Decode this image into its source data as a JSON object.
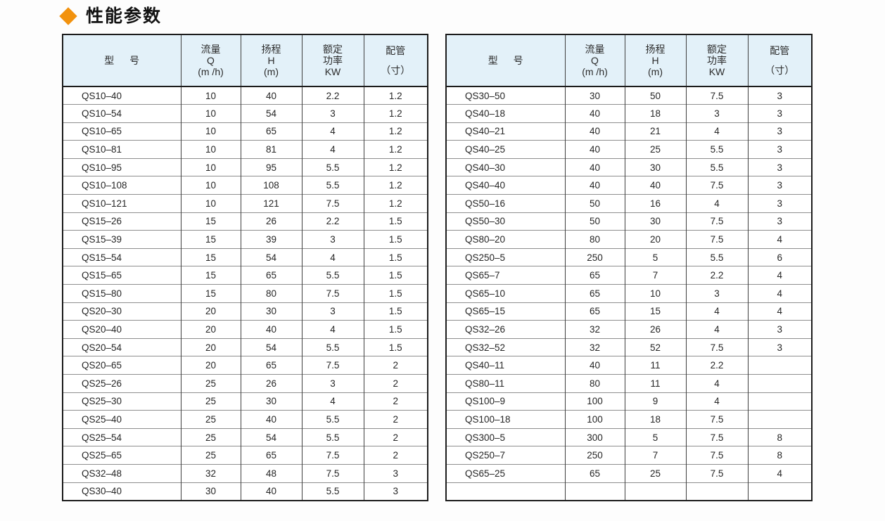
{
  "title": {
    "icon": "diamond-icon",
    "text": "性能参数"
  },
  "colors": {
    "accent": "#F2920E",
    "header_bg": "#E3F1F9"
  },
  "columns": [
    {
      "id": "model",
      "lines": [
        "型 号"
      ]
    },
    {
      "id": "flow",
      "lines": [
        "流量",
        "Q",
        "(m /h)"
      ]
    },
    {
      "id": "head",
      "lines": [
        "扬程",
        "H",
        "(m)"
      ]
    },
    {
      "id": "power",
      "lines": [
        "额定",
        "功率",
        "KW"
      ]
    },
    {
      "id": "pipe",
      "lines": [
        "配管",
        "（寸）"
      ]
    }
  ],
  "tables": [
    {
      "name": "left",
      "rows": [
        [
          "QS10–40",
          "10",
          "40",
          "2.2",
          "1.2"
        ],
        [
          "QS10–54",
          "10",
          "54",
          "3",
          "1.2"
        ],
        [
          "QS10–65",
          "10",
          "65",
          "4",
          "1.2"
        ],
        [
          "QS10–81",
          "10",
          "81",
          "4",
          "1.2"
        ],
        [
          "QS10–95",
          "10",
          "95",
          "5.5",
          "1.2"
        ],
        [
          "QS10–108",
          "10",
          "108",
          "5.5",
          "1.2"
        ],
        [
          "QS10–121",
          "10",
          "121",
          "7.5",
          "1.2"
        ],
        [
          "QS15–26",
          "15",
          "26",
          "2.2",
          "1.5"
        ],
        [
          "QS15–39",
          "15",
          "39",
          "3",
          "1.5"
        ],
        [
          "QS15–54",
          "15",
          "54",
          "4",
          "1.5"
        ],
        [
          "QS15–65",
          "15",
          "65",
          "5.5",
          "1.5"
        ],
        [
          "QS15–80",
          "15",
          "80",
          "7.5",
          "1.5"
        ],
        [
          "QS20–30",
          "20",
          "30",
          "3",
          "1.5"
        ],
        [
          "QS20–40",
          "20",
          "40",
          "4",
          "1.5"
        ],
        [
          "QS20–54",
          "20",
          "54",
          "5.5",
          "1.5"
        ],
        [
          "QS20–65",
          "20",
          "65",
          "7.5",
          "2"
        ],
        [
          "QS25–26",
          "25",
          "26",
          "3",
          "2"
        ],
        [
          "QS25–30",
          "25",
          "30",
          "4",
          "2"
        ],
        [
          "QS25–40",
          "25",
          "40",
          "5.5",
          "2"
        ],
        [
          "QS25–54",
          "25",
          "54",
          "5.5",
          "2"
        ],
        [
          "QS25–65",
          "25",
          "65",
          "7.5",
          "2"
        ],
        [
          "QS32–48",
          "32",
          "48",
          "7.5",
          "3"
        ],
        [
          "QS30–40",
          "30",
          "40",
          "5.5",
          "3"
        ]
      ]
    },
    {
      "name": "right",
      "rows": [
        [
          "QS30–50",
          "30",
          "50",
          "7.5",
          "3"
        ],
        [
          "QS40–18",
          "40",
          "18",
          "3",
          "3"
        ],
        [
          "QS40–21",
          "40",
          "21",
          "4",
          "3"
        ],
        [
          "QS40–25",
          "40",
          "25",
          "5.5",
          "3"
        ],
        [
          "QS40–30",
          "40",
          "30",
          "5.5",
          "3"
        ],
        [
          "QS40–40",
          "40",
          "40",
          "7.5",
          "3"
        ],
        [
          "QS50–16",
          "50",
          "16",
          "4",
          "3"
        ],
        [
          "QS50–30",
          "50",
          "30",
          "7.5",
          "3"
        ],
        [
          "QS80–20",
          "80",
          "20",
          "7.5",
          "4"
        ],
        [
          "QS250–5",
          "250",
          "5",
          "5.5",
          "6"
        ],
        [
          "QS65–7",
          "65",
          "7",
          "2.2",
          "4"
        ],
        [
          "QS65–10",
          "65",
          "10",
          "3",
          "4"
        ],
        [
          "QS65–15",
          "65",
          "15",
          "4",
          "4"
        ],
        [
          "QS32–26",
          "32",
          "26",
          "4",
          "3"
        ],
        [
          "QS32–52",
          "32",
          "52",
          "7.5",
          "3"
        ],
        [
          "QS40–11",
          "40",
          "11",
          "2.2",
          ""
        ],
        [
          "QS80–11",
          "80",
          "11",
          "4",
          ""
        ],
        [
          "QS100–9",
          "100",
          "9",
          "4",
          ""
        ],
        [
          "QS100–18",
          "100",
          "18",
          "7.5",
          ""
        ],
        [
          "QS300–5",
          "300",
          "5",
          "7.5",
          "8"
        ],
        [
          "QS250–7",
          "250",
          "7",
          "7.5",
          "8"
        ],
        [
          "QS65–25",
          "65",
          "25",
          "7.5",
          "4"
        ],
        [
          "",
          "",
          "",
          "",
          ""
        ]
      ]
    }
  ]
}
